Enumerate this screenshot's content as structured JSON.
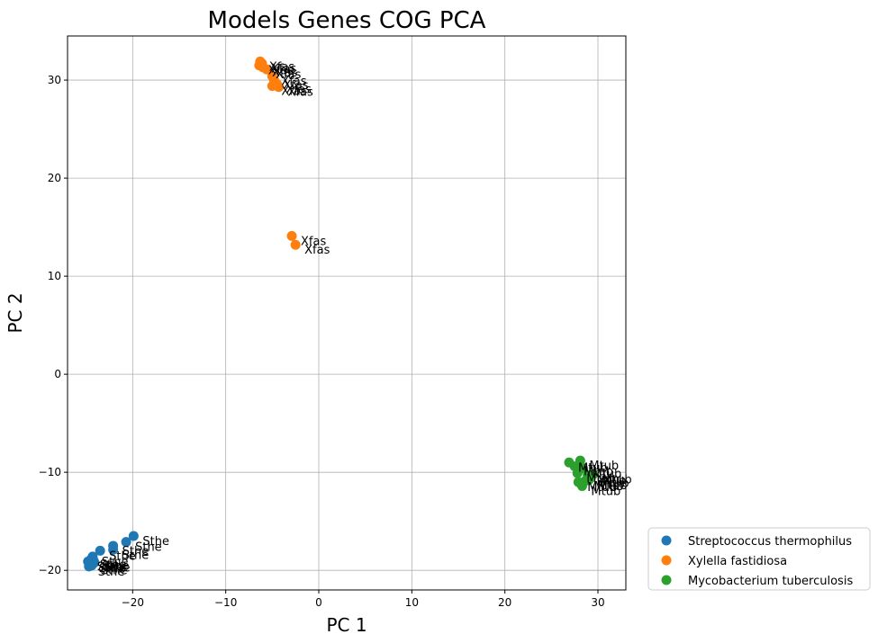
{
  "chart_data": {
    "type": "scatter",
    "title": "Models Genes COG PCA",
    "xlabel": "PC 1",
    "ylabel": "PC 2",
    "xlim": [
      -27,
      33
    ],
    "ylim": [
      -22,
      34.5
    ],
    "xticks": [
      -20,
      -10,
      0,
      10,
      20,
      30
    ],
    "yticks": [
      -20,
      -10,
      0,
      10,
      20,
      30
    ],
    "grid": true,
    "legend_position": "outside-bottom-right",
    "series": [
      {
        "name": "Streptococcus thermophilus",
        "color": "#1f77b4",
        "label": "Sthe",
        "points": [
          {
            "x": -19.9,
            "y": -16.5
          },
          {
            "x": -20.7,
            "y": -17.1
          },
          {
            "x": -22.1,
            "y": -17.5
          },
          {
            "x": -22.1,
            "y": -17.9
          },
          {
            "x": -23.5,
            "y": -18.0
          },
          {
            "x": -24.3,
            "y": -18.6
          },
          {
            "x": -24.5,
            "y": -18.9
          },
          {
            "x": -24.8,
            "y": -19.1
          },
          {
            "x": -24.6,
            "y": -19.3
          },
          {
            "x": -24.4,
            "y": -19.5
          },
          {
            "x": -24.1,
            "y": -19.2
          },
          {
            "x": -24.7,
            "y": -19.6
          },
          {
            "x": -24.2,
            "y": -19.0
          }
        ]
      },
      {
        "name": "Xylella fastidiosa",
        "color": "#ff7f0e",
        "label": "Xfas",
        "points": [
          {
            "x": -6.3,
            "y": 31.9
          },
          {
            "x": -6.1,
            "y": 31.7
          },
          {
            "x": -6.4,
            "y": 31.5
          },
          {
            "x": -6.0,
            "y": 31.3
          },
          {
            "x": -5.6,
            "y": 31.1
          },
          {
            "x": -5.0,
            "y": 30.4
          },
          {
            "x": -4.8,
            "y": 30.0
          },
          {
            "x": -4.5,
            "y": 29.6
          },
          {
            "x": -5.0,
            "y": 29.4
          },
          {
            "x": -4.3,
            "y": 29.3
          },
          {
            "x": -2.9,
            "y": 14.1
          },
          {
            "x": -2.5,
            "y": 13.2
          }
        ]
      },
      {
        "name": "Mycobacterium tuberculosis",
        "color": "#2ca02c",
        "label": "Mtub",
        "points": [
          {
            "x": 26.9,
            "y": -9.0
          },
          {
            "x": 28.1,
            "y": -8.8
          },
          {
            "x": 27.5,
            "y": -9.4
          },
          {
            "x": 28.4,
            "y": -9.6
          },
          {
            "x": 27.8,
            "y": -10.1
          },
          {
            "x": 28.9,
            "y": -10.3
          },
          {
            "x": 29.2,
            "y": -10.6
          },
          {
            "x": 28.6,
            "y": -10.9
          },
          {
            "x": 27.9,
            "y": -11.0
          },
          {
            "x": 28.3,
            "y": -11.4
          },
          {
            "x": 29.5,
            "y": -10.2
          },
          {
            "x": 29.0,
            "y": -10.8
          }
        ]
      }
    ]
  }
}
